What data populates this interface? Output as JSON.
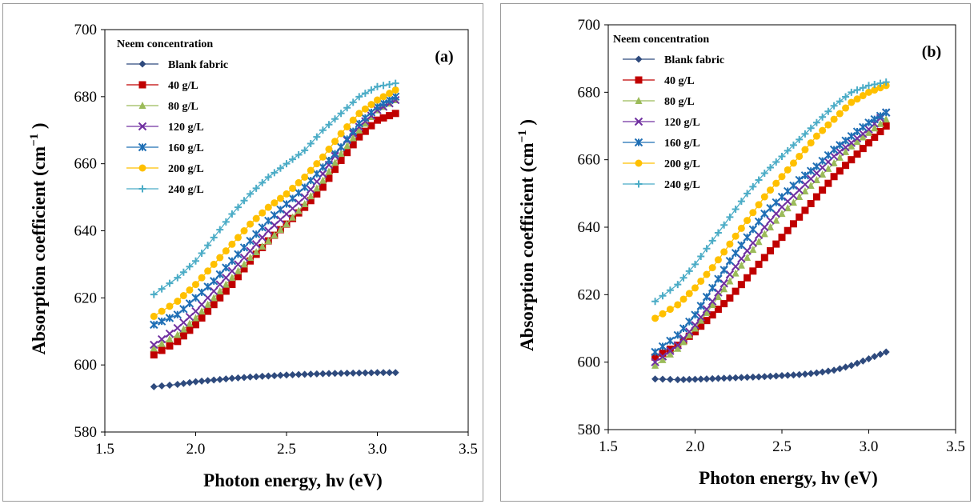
{
  "chart_data": [
    {
      "type": "line",
      "panel_label": "(a)",
      "xlabel": "Photon energy, hν  (eV)",
      "ylabel": "Absorption coefficient (cm",
      "ylabel_sup": "−1",
      "ylabel_end": ")",
      "xlim": [
        1.5,
        3.5
      ],
      "ylim": [
        580,
        700
      ],
      "xticks": [
        "1.5",
        "2.0",
        "2.5",
        "3.0",
        "3.5"
      ],
      "yticks": [
        "580",
        "600",
        "620",
        "640",
        "660",
        "680",
        "700"
      ],
      "legend_title": "Neem concentration",
      "legend_position": "top-left",
      "series": [
        {
          "name": "Blank fabric",
          "color": "#2e4a7d",
          "marker": "diamond",
          "x": [
            1.77,
            1.9,
            2.0,
            2.1,
            2.2,
            2.3,
            2.4,
            2.5,
            2.6,
            2.7,
            2.8,
            2.9,
            3.0,
            3.1
          ],
          "y": [
            593.5,
            594.2,
            595.0,
            595.5,
            596.0,
            596.4,
            596.7,
            597.0,
            597.2,
            597.4,
            597.5,
            597.6,
            597.7,
            597.7
          ]
        },
        {
          "name": " 40 g/L",
          "color": "#c00000",
          "marker": "square",
          "x": [
            1.77,
            1.9,
            2.0,
            2.1,
            2.2,
            2.3,
            2.4,
            2.5,
            2.6,
            2.7,
            2.8,
            2.9,
            3.0,
            3.1
          ],
          "y": [
            603,
            607,
            612,
            618,
            624,
            631,
            637,
            642,
            647,
            653,
            661,
            668,
            673,
            675
          ]
        },
        {
          "name": " 80 g/L",
          "color": "#9bbb59",
          "marker": "triangle",
          "x": [
            1.77,
            1.9,
            2.0,
            2.1,
            2.2,
            2.3,
            2.4,
            2.5,
            2.6,
            2.7,
            2.8,
            2.9,
            3.0,
            3.1
          ],
          "y": [
            605,
            609,
            614,
            620,
            626,
            632,
            637,
            642,
            648,
            655,
            663,
            670,
            676,
            679
          ]
        },
        {
          "name": "120 g/L",
          "color": "#7030a0",
          "marker": "x",
          "x": [
            1.77,
            1.9,
            2.0,
            2.1,
            2.2,
            2.3,
            2.4,
            2.5,
            2.6,
            2.7,
            2.8,
            2.9,
            3.0,
            3.1
          ],
          "y": [
            606,
            611,
            616,
            622,
            628,
            634,
            640,
            645,
            650,
            657,
            665,
            671,
            676,
            679
          ]
        },
        {
          "name": "160 g/L",
          "color": "#1f6fb5",
          "marker": "star",
          "x": [
            1.77,
            1.9,
            2.0,
            2.1,
            2.2,
            2.3,
            2.4,
            2.5,
            2.6,
            2.7,
            2.8,
            2.9,
            3.0,
            3.1
          ],
          "y": [
            612,
            615,
            620,
            625,
            631,
            637,
            643,
            648,
            653,
            659,
            665,
            672,
            677,
            680
          ]
        },
        {
          "name": "200 g/L",
          "color": "#ffc000",
          "marker": "circle",
          "x": [
            1.77,
            1.9,
            2.0,
            2.1,
            2.2,
            2.3,
            2.4,
            2.5,
            2.6,
            2.7,
            2.8,
            2.9,
            3.0,
            3.1
          ],
          "y": [
            614.5,
            619,
            624,
            630,
            636,
            642,
            647,
            651,
            656,
            662,
            669,
            675,
            679,
            682
          ]
        },
        {
          "name": "240 g/L",
          "color": "#4bacc6",
          "marker": "plus",
          "x": [
            1.77,
            1.9,
            2.0,
            2.1,
            2.2,
            2.3,
            2.4,
            2.5,
            2.6,
            2.7,
            2.8,
            2.9,
            3.0,
            3.1
          ],
          "y": [
            621,
            626,
            631,
            638,
            645,
            651,
            656,
            660,
            664,
            670,
            675,
            680,
            683,
            684
          ]
        }
      ]
    },
    {
      "type": "line",
      "panel_label": "(b)",
      "xlabel": "Photon energy, hν  (eV)",
      "ylabel": "Absorption coefficient (cm",
      "ylabel_sup": "−1",
      "ylabel_end": ")",
      "xlim": [
        1.5,
        3.5
      ],
      "ylim": [
        580,
        700
      ],
      "xticks": [
        "1.5",
        "2.0",
        "2.5",
        "3.0",
        "3.5"
      ],
      "yticks": [
        "580",
        "600",
        "620",
        "640",
        "660",
        "680",
        "700"
      ],
      "legend_title": "Neem concentration",
      "legend_position": "top-left",
      "series": [
        {
          "name": "Blank fabric",
          "color": "#2e4a7d",
          "marker": "diamond",
          "x": [
            1.77,
            1.9,
            2.0,
            2.1,
            2.2,
            2.3,
            2.4,
            2.5,
            2.6,
            2.7,
            2.8,
            2.9,
            3.0,
            3.1
          ],
          "y": [
            595,
            594.8,
            594.9,
            595.1,
            595.3,
            595.5,
            595.7,
            596,
            596.3,
            596.8,
            597.6,
            599,
            601,
            603
          ]
        },
        {
          "name": " 40 g/L",
          "color": "#c00000",
          "marker": "square",
          "x": [
            1.77,
            1.9,
            2.0,
            2.1,
            2.2,
            2.3,
            2.4,
            2.5,
            2.6,
            2.7,
            2.8,
            2.9,
            3.0,
            3.1
          ],
          "y": [
            601.5,
            605,
            609,
            614,
            619,
            625,
            631,
            637,
            643,
            649,
            655,
            660,
            665,
            670
          ]
        },
        {
          "name": " 80 g/L",
          "color": "#9bbb59",
          "marker": "triangle",
          "x": [
            1.77,
            1.9,
            2.0,
            2.1,
            2.2,
            2.3,
            2.4,
            2.5,
            2.6,
            2.7,
            2.8,
            2.9,
            3.0,
            3.1
          ],
          "y": [
            599,
            604,
            610,
            617,
            624,
            631,
            638,
            644,
            649,
            654,
            659,
            664,
            668,
            672
          ]
        },
        {
          "name": "120 g/L",
          "color": "#7030a0",
          "marker": "x",
          "x": [
            1.77,
            1.9,
            2.0,
            2.1,
            2.2,
            2.3,
            2.4,
            2.5,
            2.6,
            2.7,
            2.8,
            2.9,
            3.0,
            3.1
          ],
          "y": [
            600,
            605,
            611,
            618,
            626,
            633,
            640,
            646,
            651,
            656,
            661,
            665,
            669,
            674
          ]
        },
        {
          "name": "160 g/L",
          "color": "#1f6fb5",
          "marker": "star",
          "x": [
            1.77,
            1.9,
            2.0,
            2.1,
            2.2,
            2.3,
            2.4,
            2.5,
            2.6,
            2.7,
            2.8,
            2.9,
            3.0,
            3.1
          ],
          "y": [
            603,
            608,
            614,
            622,
            630,
            637,
            644,
            649,
            654,
            658,
            663,
            667,
            671,
            674
          ]
        },
        {
          "name": "200 g/L",
          "color": "#ffc000",
          "marker": "circle",
          "x": [
            1.77,
            1.9,
            2.0,
            2.1,
            2.2,
            2.3,
            2.4,
            2.5,
            2.6,
            2.7,
            2.8,
            2.9,
            3.0,
            3.1
          ],
          "y": [
            613,
            617,
            622,
            628,
            635,
            642,
            649,
            655,
            661,
            667,
            672,
            677,
            680,
            682
          ]
        },
        {
          "name": "240 g/L",
          "color": "#4bacc6",
          "marker": "plus",
          "x": [
            1.77,
            1.9,
            2.0,
            2.1,
            2.2,
            2.3,
            2.4,
            2.5,
            2.6,
            2.7,
            2.8,
            2.9,
            3.0,
            3.1
          ],
          "y": [
            618,
            623,
            629,
            636,
            643,
            650,
            656,
            661,
            666,
            671,
            676,
            680,
            682,
            683
          ]
        }
      ]
    }
  ]
}
